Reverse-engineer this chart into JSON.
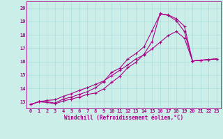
{
  "xlabel": "Windchill (Refroidissement éolien,°C)",
  "bg_color": "#cceee8",
  "line_color": "#aa0088",
  "marker": "+",
  "xlim": [
    -0.5,
    23.5
  ],
  "ylim": [
    12.5,
    20.5
  ],
  "yticks": [
    13,
    14,
    15,
    16,
    17,
    18,
    19,
    20
  ],
  "xticks": [
    0,
    1,
    2,
    3,
    4,
    5,
    6,
    7,
    8,
    9,
    10,
    11,
    12,
    13,
    14,
    15,
    16,
    17,
    18,
    19,
    20,
    21,
    22,
    23
  ],
  "line1_x": [
    0,
    1,
    2,
    3,
    4,
    5,
    6,
    7,
    8,
    9,
    10,
    11,
    12,
    13,
    14,
    15,
    16,
    17,
    18,
    19,
    20,
    21,
    22,
    23
  ],
  "line1_y": [
    12.8,
    13.0,
    13.1,
    13.15,
    13.4,
    13.6,
    13.85,
    14.05,
    14.3,
    14.55,
    14.95,
    15.35,
    15.75,
    16.2,
    16.5,
    16.95,
    17.45,
    17.95,
    18.25,
    17.75,
    16.05,
    16.1,
    16.15,
    16.2
  ],
  "line2_x": [
    0,
    1,
    2,
    3,
    4,
    5,
    6,
    7,
    8,
    9,
    10,
    11,
    12,
    13,
    14,
    15,
    16,
    17,
    18,
    19,
    20,
    21,
    22,
    23
  ],
  "line2_y": [
    12.8,
    13.0,
    13.0,
    12.9,
    13.2,
    13.35,
    13.55,
    13.75,
    14.05,
    14.5,
    15.2,
    15.5,
    16.2,
    16.6,
    17.1,
    18.3,
    19.55,
    19.5,
    19.2,
    18.65,
    16.05,
    16.1,
    16.15,
    16.2
  ],
  "line3_x": [
    0,
    1,
    2,
    3,
    4,
    5,
    6,
    7,
    8,
    9,
    10,
    11,
    12,
    13,
    14,
    15,
    16,
    17,
    18,
    19,
    20,
    21,
    22,
    23
  ],
  "line3_y": [
    12.8,
    13.0,
    12.95,
    12.85,
    13.05,
    13.2,
    13.35,
    13.55,
    13.65,
    13.95,
    14.45,
    14.9,
    15.55,
    15.95,
    16.55,
    17.5,
    19.6,
    19.45,
    19.05,
    18.25,
    16.05,
    16.1,
    16.15,
    16.2
  ],
  "tick_fontsize": 5,
  "xlabel_fontsize": 5.5,
  "grid_color": "#aadddd",
  "spine_color": "#aa0088"
}
